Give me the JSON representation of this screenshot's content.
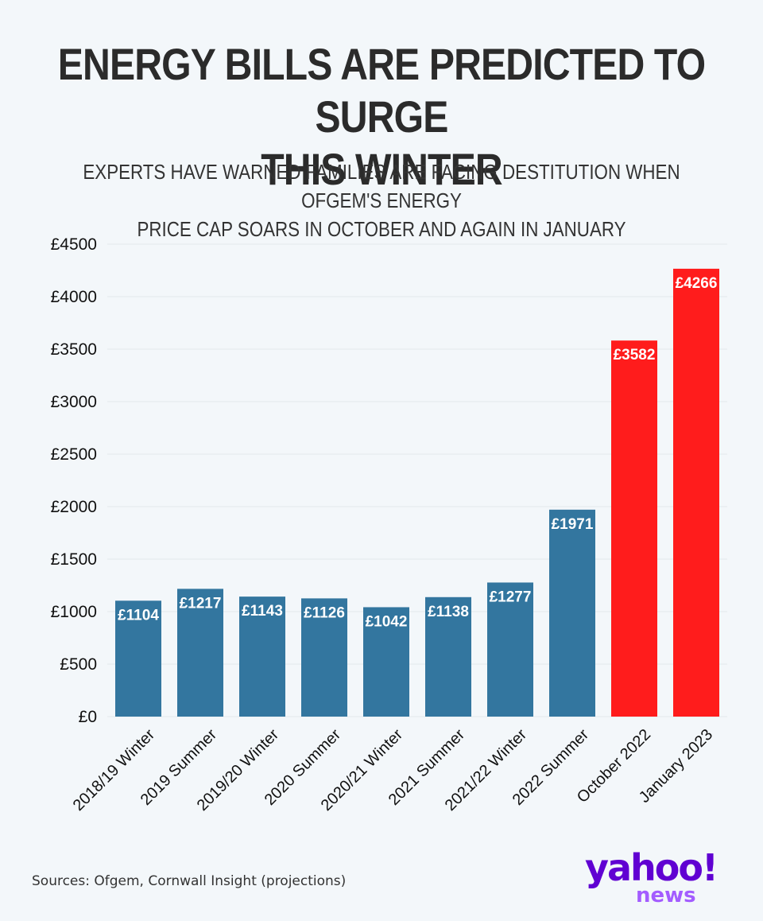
{
  "title_line1": "ENERGY BILLS ARE PREDICTED TO SURGE",
  "title_line2": "THIS WINTER",
  "subtitle_line1": "EXPERTS HAVE WARNED FAMILIES ARE FACING DESTITUTION WHEN OFGEM'S ENERGY",
  "subtitle_line2": "PRICE CAP SOARS IN OCTOBER AND AGAIN IN JANUARY",
  "source": "Sources: Ofgem, Cornwall Insight (projections)",
  "logo": {
    "brand": "yahoo!",
    "sub": "news"
  },
  "colors": {
    "historic": "#33769f",
    "projected": "#ff1c1c",
    "logo_purple": "#6001d2",
    "logo_news": "#a35cff",
    "background": "#f3f7fa"
  },
  "chart_data": {
    "type": "bar",
    "categories": [
      "2018/19 Winter",
      "2019 Summer",
      "2019/20 Winter",
      "2020 Summer",
      "2020/21 Winter",
      "2021 Summer",
      "2021/22 Winter",
      "2022 Summer",
      "October 2022",
      "January 2023"
    ],
    "values": [
      1104,
      1217,
      1143,
      1126,
      1042,
      1138,
      1277,
      1971,
      3582,
      4266
    ],
    "data_labels": [
      "£1104",
      "£1217",
      "£1143",
      "£1126",
      "£1042",
      "£1138",
      "£1277",
      "£1971",
      "£3582",
      "£4266"
    ],
    "bar_colors": [
      "historic",
      "historic",
      "historic",
      "historic",
      "historic",
      "historic",
      "historic",
      "historic",
      "projected",
      "projected"
    ],
    "yticks": [
      0,
      500,
      1000,
      1500,
      2000,
      2500,
      3000,
      3500,
      4000,
      4500
    ],
    "ytick_labels": [
      "£0",
      "£500",
      "£1000",
      "£1500",
      "£2000",
      "£2500",
      "£3000",
      "£3500",
      "£4000",
      "£4500"
    ],
    "ylim": [
      0,
      4500
    ],
    "grid": true,
    "legend": "none"
  }
}
